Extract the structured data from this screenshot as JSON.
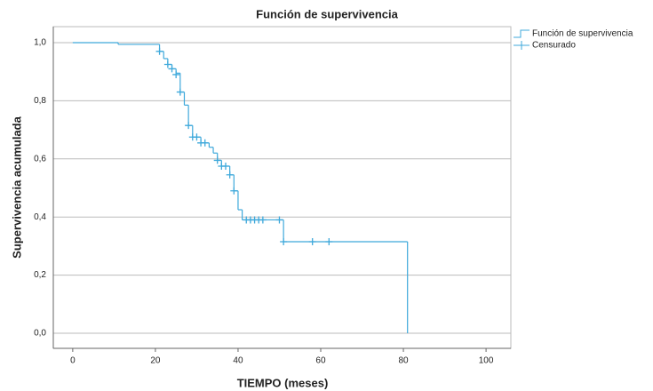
{
  "chart_data": {
    "type": "step",
    "title": "Función de supervivencia",
    "x_label": "TIEMPO (meses)",
    "y_label": "Supervivencia acumulada",
    "xlim": [
      -4.7,
      106
    ],
    "xticks": [
      0,
      20,
      40,
      60,
      80,
      100
    ],
    "ylim": [
      -0.052,
      1.055
    ],
    "yticks": [
      {
        "value": 0,
        "label": "0,0"
      },
      {
        "value": 0.2,
        "label": "0,2"
      },
      {
        "value": 0.4,
        "label": "0,4"
      },
      {
        "value": 0.6,
        "label": "0,6"
      },
      {
        "value": 0.8,
        "label": "0,8"
      },
      {
        "value": 1,
        "label": "1,0"
      }
    ],
    "grid": true,
    "legend": "top-right",
    "series": [
      {
        "name": "Función de supervivencia",
        "color": "#3fa9db",
        "x": [
          0,
          11,
          21,
          22,
          23,
          24,
          25,
          26,
          27,
          28,
          29,
          31,
          33,
          34,
          35,
          36,
          38,
          39,
          40,
          41,
          51,
          81
        ],
        "values": [
          1.0,
          0.994,
          0.97,
          0.945,
          0.925,
          0.91,
          0.895,
          0.83,
          0.785,
          0.715,
          0.675,
          0.655,
          0.64,
          0.62,
          0.595,
          0.575,
          0.545,
          0.49,
          0.425,
          0.39,
          0.315,
          0.0
        ]
      },
      {
        "name": "Censurado",
        "color": "#3fa9db",
        "x": [
          21,
          23,
          24,
          25,
          26,
          28,
          29,
          30,
          31,
          32,
          35,
          36,
          37,
          38,
          39,
          42,
          43,
          44,
          45,
          46,
          50,
          51,
          58,
          62
        ],
        "values": [
          0.97,
          0.925,
          0.91,
          0.89,
          0.83,
          0.715,
          0.675,
          0.675,
          0.655,
          0.655,
          0.595,
          0.575,
          0.575,
          0.545,
          0.49,
          0.39,
          0.39,
          0.39,
          0.39,
          0.39,
          0.39,
          0.315,
          0.315,
          0.315
        ]
      }
    ]
  }
}
